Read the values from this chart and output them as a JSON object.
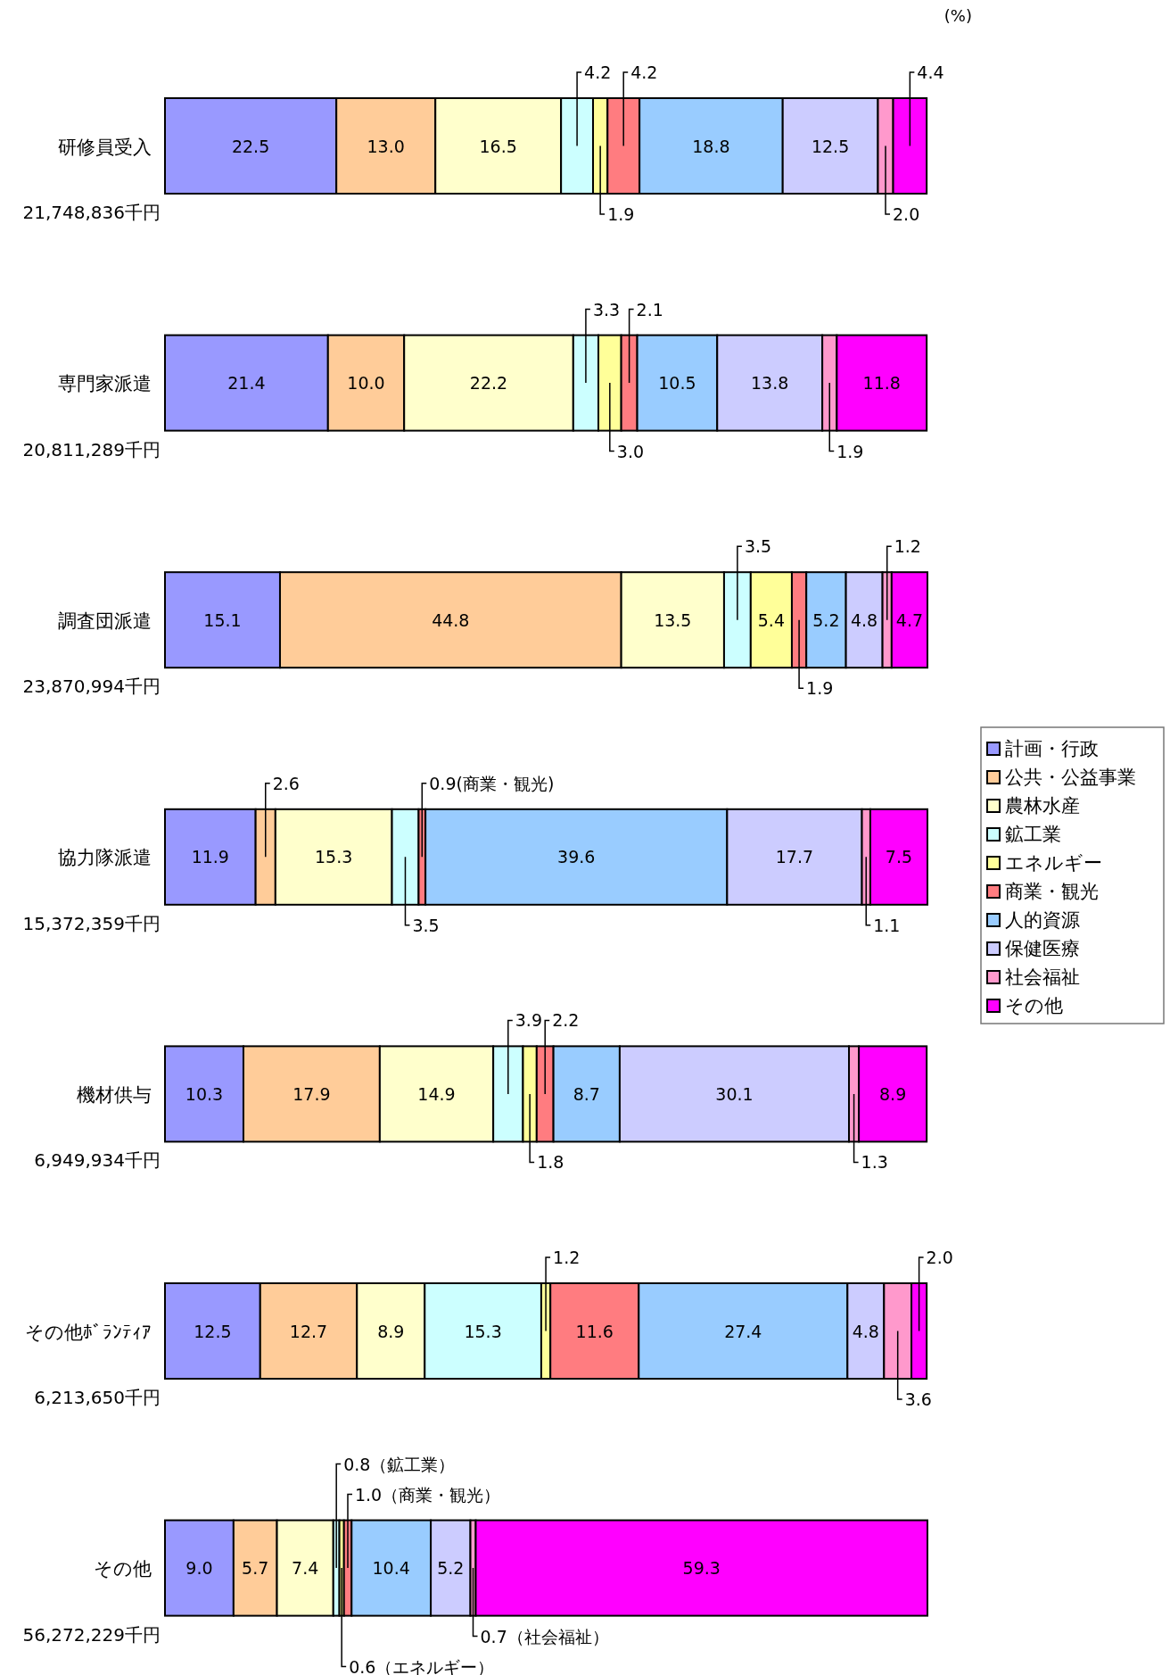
{
  "chart_data": {
    "type": "bar",
    "orientation": "horizontal",
    "stacked": true,
    "categories": [
      "研修員受入",
      "専門家派遣",
      "調査団派遣",
      "協力隊派遣",
      "機材供与",
      "その他ﾎﾞﾗﾝﾃｨｱ",
      "その他"
    ],
    "series": [
      {
        "name": "計画・行政",
        "color": "#9999ff",
        "values": [
          22.5,
          21.4,
          15.1,
          11.9,
          10.3,
          12.5,
          9.0
        ],
        "value_labels": [
          "22.5",
          "21.4",
          "15.1",
          "11.9",
          "10.3",
          "12.5",
          "9.0"
        ]
      },
      {
        "name": "公共・公益事業",
        "color": "#ffcc99",
        "values": [
          13.0,
          10.0,
          44.8,
          2.6,
          17.9,
          12.7,
          5.7
        ],
        "value_labels": [
          "13.0",
          "10.0",
          "44.8",
          "2.6",
          "17.9",
          "12.7",
          "5.7"
        ]
      },
      {
        "name": "農林水産",
        "color": "#ffffcc",
        "values": [
          16.5,
          22.2,
          13.5,
          15.3,
          14.9,
          8.9,
          7.4
        ],
        "value_labels": [
          "16.5",
          "22.2",
          "13.5",
          "15.3",
          "14.9",
          "8.9",
          "7.4"
        ]
      },
      {
        "name": "鉱工業",
        "color": "#ccffff",
        "values": [
          4.2,
          3.3,
          3.5,
          3.5,
          3.9,
          15.3,
          0.8
        ],
        "value_labels": [
          "4.2",
          "3.3",
          "3.5",
          "3.5",
          "3.9",
          "15.3",
          "0.8（鉱工業）"
        ]
      },
      {
        "name": "エネルギー",
        "color": "#ffff99",
        "values": [
          1.9,
          3.0,
          5.4,
          null,
          1.8,
          1.2,
          0.6
        ],
        "value_labels": [
          "1.9",
          "3.0",
          "5.4",
          null,
          "1.8",
          "1.2",
          "0.6（エネルギー）"
        ]
      },
      {
        "name": "商業・観光",
        "color": "#ff7c80",
        "values": [
          4.2,
          2.1,
          1.9,
          0.9,
          2.2,
          11.6,
          1.0
        ],
        "value_labels": [
          "4.2",
          "2.1",
          "1.9",
          "0.9(商業・観光)",
          "2.2",
          "11.6",
          "1.0（商業・観光）"
        ]
      },
      {
        "name": "人的資源",
        "color": "#99ccff",
        "values": [
          18.8,
          10.5,
          5.2,
          39.6,
          8.7,
          27.4,
          10.4
        ],
        "value_labels": [
          "18.8",
          "10.5",
          "5.2",
          "39.6",
          "8.7",
          "27.4",
          "10.4"
        ]
      },
      {
        "name": "保健医療",
        "color": "#ccccff",
        "values": [
          12.5,
          13.8,
          4.8,
          17.7,
          30.1,
          4.8,
          5.2
        ],
        "value_labels": [
          "12.5",
          "13.8",
          "4.8",
          "17.7",
          "30.1",
          "4.8",
          "5.2"
        ]
      },
      {
        "name": "社会福祉",
        "color": "#ff99cc",
        "values": [
          2.0,
          1.9,
          1.2,
          1.1,
          1.3,
          3.6,
          0.7
        ],
        "value_labels": [
          "2.0",
          "1.9",
          "1.2",
          "1.1",
          "1.3",
          "3.6",
          "0.7（社会福祉）"
        ]
      },
      {
        "name": "その他",
        "color": "#ff00ff",
        "values": [
          4.4,
          11.8,
          4.7,
          7.5,
          8.9,
          2.0,
          59.3
        ],
        "value_labels": [
          "4.4",
          "11.8",
          "4.7",
          "7.5",
          "8.9",
          "2.0",
          "59.3"
        ]
      }
    ],
    "annotations": [
      "21,748,836千円",
      "20,811,289千円",
      "23,870,994千円",
      "15,372,359千円",
      "6,949,934千円",
      "6,213,650千円",
      "56,272,229千円",
      "(%)"
    ],
    "legend": "right"
  }
}
